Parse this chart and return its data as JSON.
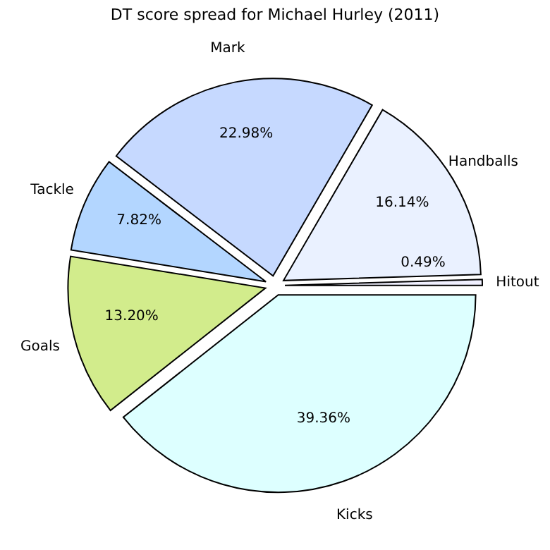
{
  "chart_data": {
    "type": "pie",
    "title": "DT score spread for Michael Hurley (2011)",
    "categories": [
      "Kicks",
      "Goals",
      "Tackle",
      "Mark",
      "Handballs",
      "Hitout"
    ],
    "values": [
      39.36,
      13.2,
      7.82,
      22.98,
      16.14,
      0.49
    ],
    "value_labels": [
      "39.36%",
      "13.20%",
      "7.82%",
      "22.98%",
      "16.14%",
      "0.49%"
    ],
    "colors": [
      "#ddffff",
      "#d2ec8c",
      "#b3d6ff",
      "#c6d9ff",
      "#eaf1ff",
      "#f0f0ff"
    ],
    "legend": false
  }
}
